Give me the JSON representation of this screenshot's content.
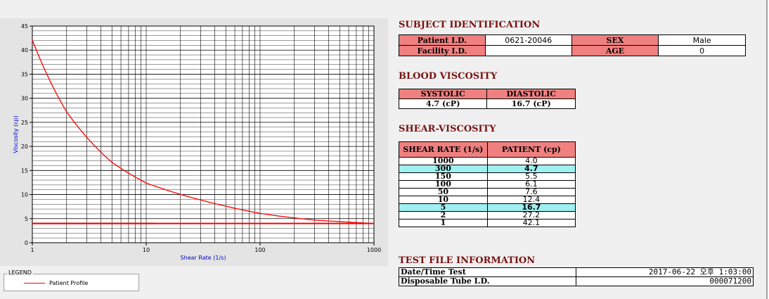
{
  "chart_data": {
    "type": "line",
    "title": "",
    "xlabel": "Shear Rate (1/s)",
    "ylabel": "Viscosity (cp)",
    "x_scale": "log",
    "xlim": [
      1,
      1000
    ],
    "ylim": [
      0,
      45
    ],
    "x_ticks": [
      "1",
      "10",
      "100",
      "1000"
    ],
    "y_ticks": [
      "0",
      "5",
      "10",
      "15",
      "20",
      "25",
      "30",
      "35",
      "40",
      "45"
    ],
    "grid": true,
    "legend_placement": "bottom-left",
    "series": [
      {
        "name": "Patient Profile",
        "color": "#ff0000",
        "x": [
          1,
          2,
          5,
          10,
          50,
          100,
          150,
          300,
          1000
        ],
        "y": [
          42.1,
          27.2,
          16.7,
          12.4,
          7.6,
          6.1,
          5.5,
          4.7,
          4.0
        ]
      }
    ],
    "reference_lines": [
      {
        "color": "#8b0000",
        "y": 4.0,
        "x_start": 1,
        "x_end": 12
      },
      {
        "color": "#ff0000",
        "y": 4.0,
        "x_start": 1,
        "x_end": 1000
      }
    ]
  },
  "legend": {
    "title": "LEGEND",
    "label": "Patient Profile"
  },
  "subject": {
    "title": "SUBJECT IDENTIFICATION",
    "patient_id_label": "Patient I.D.",
    "patient_id": "0621-20046",
    "sex_label": "SEX",
    "sex": "Male",
    "facility_id_label": "Facility I.D.",
    "facility_id": "",
    "age_label": "AGE",
    "age": "0"
  },
  "blood_viscosity": {
    "title": "BLOOD VISCOSITY",
    "systolic_label": "SYSTOLIC",
    "diastolic_label": "DIASTOLIC",
    "systolic": "4.7 (cP)",
    "diastolic": "16.7 (cP)"
  },
  "shear_viscosity": {
    "title": "SHEAR-VISCOSITY",
    "col_rate": "SHEAR RATE (1/s)",
    "col_patient": "PATIENT (cp)",
    "rows": [
      {
        "rate": "1000",
        "value": "4.0"
      },
      {
        "rate": "300",
        "value": "4.7"
      },
      {
        "rate": "150",
        "value": "5.5"
      },
      {
        "rate": "100",
        "value": "6.1"
      },
      {
        "rate": "50",
        "value": "7.6"
      },
      {
        "rate": "10",
        "value": "12.4"
      },
      {
        "rate": "5",
        "value": "16.7"
      },
      {
        "rate": "2",
        "value": "27.2"
      },
      {
        "rate": "1",
        "value": "42.1"
      }
    ]
  },
  "test_file": {
    "title": "TEST FILE INFORMATION",
    "datetime_label": "Date/Time Test",
    "datetime": "2017-06-22  오후 1:03:00",
    "tube_label": "Disposable Tube I.D.",
    "tube": "000071200"
  }
}
